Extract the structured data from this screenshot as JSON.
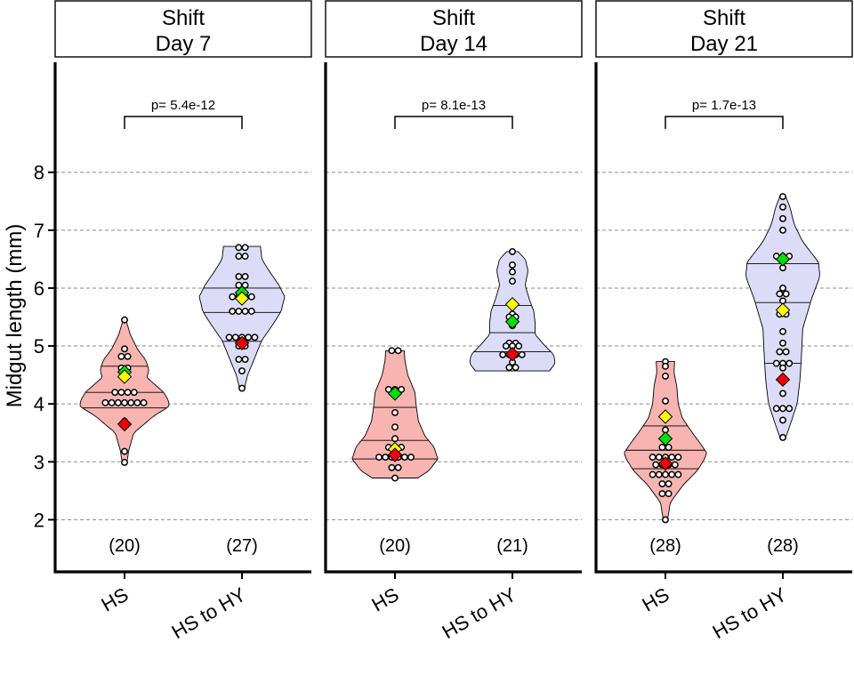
{
  "chart_data": {
    "type": "violin",
    "ylabel": "Midgut length (mm)",
    "ylim": [
      1.1,
      9.9
    ],
    "yticks": [
      2,
      3,
      4,
      5,
      6,
      7,
      8
    ],
    "grid": "horizontal dashed",
    "categories": [
      "HS",
      "HS to HY"
    ],
    "colors": {
      "HS": "#f8b4b0",
      "HS to HY": "#dcdcf8",
      "green_marker": "#00dd00",
      "yellow_marker": "#ffff00",
      "red_marker": "#ee0000"
    },
    "panels": [
      {
        "strip": [
          "Shift",
          "Day 7"
        ],
        "pvalue": "p= 5.4e-12",
        "groups": [
          {
            "name": "HS",
            "n_label": "(20)",
            "range": [
              2.97,
              5.45
            ],
            "quantiles": [
              3.93,
              4.2,
              4.65
            ],
            "density": [
              [
                2.97,
                0.03
              ],
              [
                3.2,
                0.06
              ],
              [
                3.5,
                0.13
              ],
              [
                3.8,
                0.42
              ],
              [
                3.95,
                0.62
              ],
              [
                4.05,
                0.62
              ],
              [
                4.2,
                0.55
              ],
              [
                4.45,
                0.32
              ],
              [
                4.6,
                0.34
              ],
              [
                4.75,
                0.3
              ],
              [
                4.95,
                0.18
              ],
              [
                5.2,
                0.08
              ],
              [
                5.45,
                0.02
              ]
            ],
            "points": [
              5.45,
              4.95,
              4.82,
              4.82,
              4.62,
              4.62,
              4.2,
              4.2,
              4.2,
              4.2,
              4.02,
              4.02,
              4.02,
              4.02,
              4.02,
              4.02,
              4.02,
              3.7,
              3.18,
              2.99
            ],
            "green": 4.55,
            "yellow": 4.47,
            "red": 3.65
          },
          {
            "name": "HS to HY",
            "n_label": "(27)",
            "range": [
              4.25,
              6.72
            ],
            "quantiles": [
              5.08,
              5.58,
              6.0
            ],
            "density": [
              [
                4.25,
                0.03
              ],
              [
                4.5,
                0.08
              ],
              [
                4.8,
                0.18
              ],
              [
                5.1,
                0.28
              ],
              [
                5.4,
                0.45
              ],
              [
                5.6,
                0.55
              ],
              [
                5.85,
                0.6
              ],
              [
                6.05,
                0.52
              ],
              [
                6.3,
                0.38
              ],
              [
                6.5,
                0.28
              ],
              [
                6.72,
                0.26
              ]
            ],
            "points": [
              6.7,
              6.7,
              6.55,
              6.55,
              6.2,
              6.2,
              6.05,
              6.05,
              5.85,
              5.85,
              5.85,
              5.85,
              5.6,
              5.6,
              5.6,
              5.6,
              5.15,
              5.15,
              5.15,
              5.15,
              5.15,
              5.0,
              5.0,
              4.77,
              4.77,
              4.57,
              4.27
            ],
            "green": 5.92,
            "yellow": 5.82,
            "red": 5.05
          }
        ]
      },
      {
        "strip": [
          "Shift",
          "Day 14"
        ],
        "pvalue": "p= 8.1e-13",
        "groups": [
          {
            "name": "HS",
            "n_label": "(20)",
            "range": [
              2.72,
              4.92
            ],
            "quantiles": [
              3.05,
              3.37,
              3.94
            ],
            "density": [
              [
                2.72,
                0.32
              ],
              [
                2.85,
                0.48
              ],
              [
                3.05,
                0.6
              ],
              [
                3.25,
                0.55
              ],
              [
                3.45,
                0.42
              ],
              [
                3.7,
                0.33
              ],
              [
                3.95,
                0.3
              ],
              [
                4.2,
                0.28
              ],
              [
                4.5,
                0.18
              ],
              [
                4.75,
                0.14
              ],
              [
                4.92,
                0.13
              ]
            ],
            "points": [
              4.92,
              4.92,
              4.25,
              4.25,
              4.25,
              3.85,
              3.6,
              3.4,
              3.25,
              3.25,
              3.25,
              3.08,
              3.08,
              3.08,
              3.08,
              3.08,
              3.08,
              2.9,
              2.9,
              2.72
            ],
            "green": 4.18,
            "yellow": 3.22,
            "red": 3.12
          },
          {
            "name": "HS to HY",
            "n_label": "(21)",
            "range": [
              4.57,
              6.63
            ],
            "quantiles": [
              4.9,
              5.23,
              5.7
            ],
            "density": [
              [
                4.57,
                0.52
              ],
              [
                4.7,
                0.6
              ],
              [
                4.85,
                0.58
              ],
              [
                5.0,
                0.46
              ],
              [
                5.2,
                0.32
              ],
              [
                5.4,
                0.32
              ],
              [
                5.6,
                0.3
              ],
              [
                5.8,
                0.24
              ],
              [
                6.05,
                0.18
              ],
              [
                6.3,
                0.22
              ],
              [
                6.5,
                0.18
              ],
              [
                6.63,
                0.08
              ]
            ],
            "points": [
              6.63,
              6.4,
              6.28,
              6.12,
              5.7,
              5.55,
              5.5,
              5.5,
              5.35,
              5.05,
              5.05,
              5.0,
              5.0,
              5.0,
              4.85,
              4.85,
              4.85,
              4.85,
              4.72,
              4.63,
              4.63
            ],
            "green": 5.42,
            "yellow": 5.72,
            "red": 4.86
          }
        ]
      },
      {
        "strip": [
          "Shift",
          "Day 21"
        ],
        "pvalue": "p= 1.7e-13",
        "groups": [
          {
            "name": "HS",
            "n_label": "(28)",
            "range": [
              2.0,
              4.73
            ],
            "quantiles": [
              2.88,
              3.2,
              3.62
            ],
            "density": [
              [
                2.0,
                0.03
              ],
              [
                2.3,
                0.07
              ],
              [
                2.6,
                0.25
              ],
              [
                2.85,
                0.45
              ],
              [
                3.05,
                0.55
              ],
              [
                3.15,
                0.58
              ],
              [
                3.3,
                0.5
              ],
              [
                3.5,
                0.38
              ],
              [
                3.75,
                0.24
              ],
              [
                4.0,
                0.18
              ],
              [
                4.3,
                0.16
              ],
              [
                4.55,
                0.12
              ],
              [
                4.73,
                0.13
              ]
            ],
            "points": [
              4.73,
              4.65,
              4.48,
              4.05,
              3.75,
              3.55,
              3.42,
              3.25,
              3.25,
              3.08,
              3.08,
              3.08,
              3.08,
              3.08,
              2.95,
              2.95,
              2.95,
              2.95,
              2.78,
              2.78,
              2.78,
              2.78,
              2.78,
              2.62,
              2.62,
              2.45,
              2.45,
              2.0
            ],
            "green": 3.4,
            "yellow": 3.78,
            "red": 2.97
          },
          {
            "name": "HS to HY",
            "n_label": "(28)",
            "range": [
              3.42,
              7.58
            ],
            "quantiles": [
              4.7,
              5.75,
              6.42
            ],
            "density": [
              [
                3.42,
                0.04
              ],
              [
                3.7,
                0.12
              ],
              [
                4.0,
                0.2
              ],
              [
                4.4,
                0.24
              ],
              [
                4.8,
                0.26
              ],
              [
                5.3,
                0.28
              ],
              [
                5.8,
                0.4
              ],
              [
                6.2,
                0.52
              ],
              [
                6.45,
                0.5
              ],
              [
                6.8,
                0.28
              ],
              [
                7.1,
                0.16
              ],
              [
                7.4,
                0.1
              ],
              [
                7.58,
                0.04
              ]
            ],
            "points": [
              7.58,
              7.4,
              7.2,
              7.0,
              6.55,
              6.55,
              6.55,
              6.35,
              6.0,
              5.9,
              5.9,
              5.78,
              5.55,
              5.55,
              5.25,
              5.05,
              4.9,
              4.9,
              4.7,
              4.7,
              4.7,
              4.62,
              4.18,
              3.92,
              3.92,
              3.92,
              3.72,
              3.42
            ],
            "green": 6.5,
            "yellow": 5.62,
            "red": 4.42
          }
        ]
      }
    ]
  }
}
